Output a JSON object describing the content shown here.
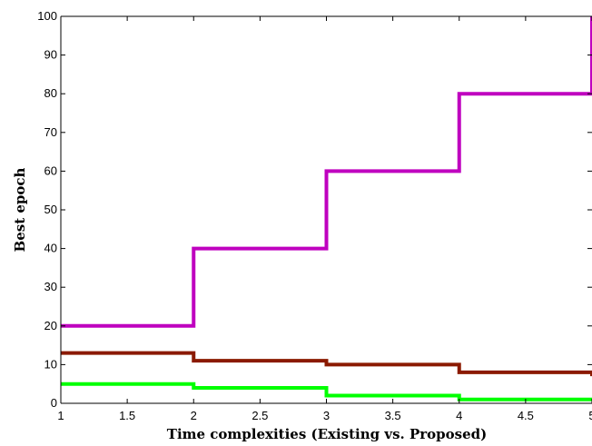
{
  "chart_data": {
    "type": "line",
    "step": "post",
    "title": "",
    "xlabel": "Time complexities (Existing vs. Proposed)",
    "ylabel": "Best epoch",
    "xlim": [
      1,
      5
    ],
    "ylim": [
      0,
      100
    ],
    "x_ticks": [
      1,
      1.5,
      2,
      2.5,
      3,
      3.5,
      4,
      4.5,
      5
    ],
    "x_tick_labels": [
      "1",
      "1.5",
      "2",
      "2.5",
      "3",
      "3.5",
      "4",
      "4.5",
      "5"
    ],
    "y_ticks": [
      0,
      10,
      20,
      30,
      40,
      50,
      60,
      70,
      80,
      90,
      100
    ],
    "y_tick_labels": [
      "0",
      "10",
      "20",
      "30",
      "40",
      "50",
      "60",
      "70",
      "80",
      "90",
      "100"
    ],
    "grid": false,
    "series": [
      {
        "x": [
          1,
          2,
          3,
          4,
          5
        ],
        "y": [
          20,
          40,
          60,
          80,
          100
        ],
        "color": "#bf00bf"
      },
      {
        "x": [
          1,
          2,
          3,
          4,
          5
        ],
        "y": [
          13,
          11,
          10,
          8,
          7
        ],
        "color": "#8b1a00"
      },
      {
        "x": [
          1,
          2,
          3,
          4,
          5
        ],
        "y": [
          5,
          4,
          2,
          1,
          1
        ],
        "color": "#00ff00"
      }
    ]
  }
}
